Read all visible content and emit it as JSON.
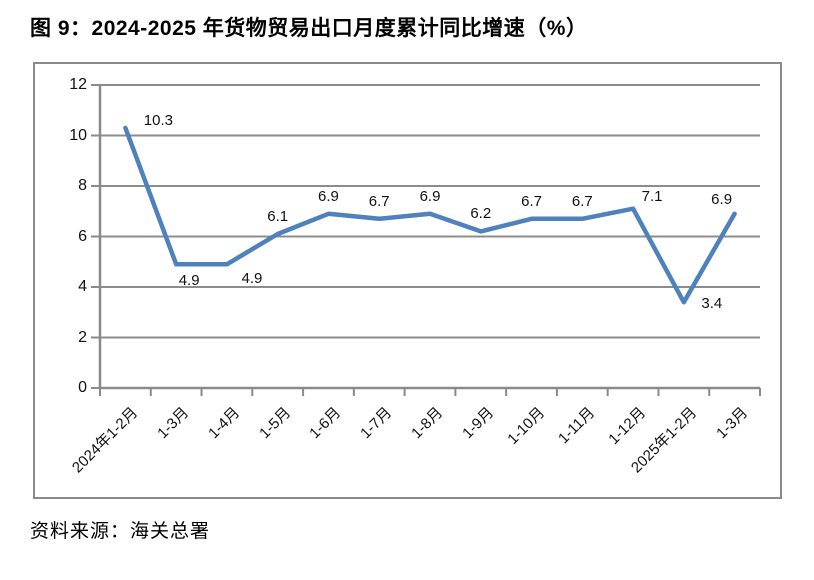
{
  "title": "图 9：2024-2025 年货物贸易出口月度累计同比增速（%）",
  "source": "资料来源：海关总署",
  "colors": {
    "line": "#4F81BD",
    "grid": "#8c8c8c",
    "axis": "#8a8a8a",
    "frame_border": "#8a8a8a",
    "text": "#000000"
  },
  "chart_data": {
    "type": "line",
    "title": "图 9：2024-2025 年货物贸易出口月度累计同比增速（%）",
    "categories": [
      "2024年1-2月",
      "1-3月",
      "1-4月",
      "1-5月",
      "1-6月",
      "1-7月",
      "1-8月",
      "1-9月",
      "1-10月",
      "1-11月",
      "1-12月",
      "2025年1-2月",
      "1-3月"
    ],
    "values": [
      10.3,
      4.9,
      4.9,
      6.1,
      6.9,
      6.7,
      6.9,
      6.2,
      6.7,
      6.7,
      7.1,
      3.4,
      6.9
    ],
    "point_labels": [
      "10.3",
      "4.9",
      "4.9",
      "6.1",
      "6.9",
      "6.7",
      "6.9",
      "6.2",
      "6.7",
      "6.7",
      "7.1",
      "3.4",
      "6.9"
    ],
    "xlabel": "",
    "ylabel": "",
    "ylim": [
      0,
      12
    ],
    "yticks": [
      0,
      2,
      4,
      6,
      8,
      10,
      12
    ],
    "grid": true,
    "legend": false,
    "x_label_rotation": 45,
    "source": "资料来源：海关总署"
  }
}
